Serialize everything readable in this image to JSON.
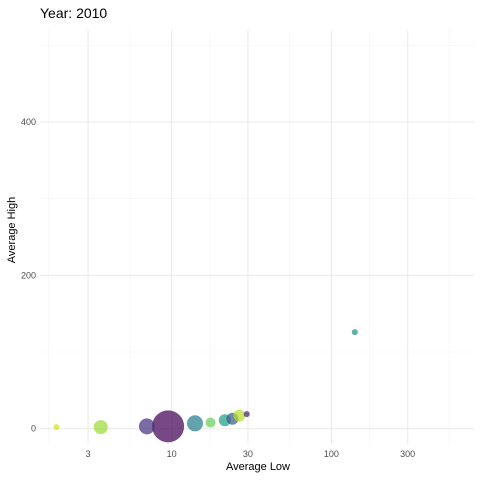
{
  "chart_data": {
    "type": "scatter",
    "title": "Year: 2010",
    "xlabel": "Average Low",
    "ylabel": "Average High",
    "x_scale": "log",
    "xlim": [
      1.5,
      780
    ],
    "ylim": [
      -20,
      520
    ],
    "x_ticks": [
      {
        "value": 3,
        "label": "3"
      },
      {
        "value": 10,
        "label": "10"
      },
      {
        "value": 30,
        "label": "30"
      },
      {
        "value": 100,
        "label": "100"
      },
      {
        "value": 300,
        "label": "300"
      }
    ],
    "y_ticks": [
      {
        "value": 0,
        "label": "0"
      },
      {
        "value": 200,
        "label": "200"
      },
      {
        "value": 400,
        "label": "400"
      }
    ],
    "grid": true,
    "legend": "none",
    "points": [
      {
        "x": 1.9,
        "y": 2,
        "size": 3,
        "color": "#d8e219"
      },
      {
        "x": 3.6,
        "y": 2,
        "size": 7,
        "color": "#a0da39"
      },
      {
        "x": 7.0,
        "y": 3,
        "size": 8,
        "color": "#46327e"
      },
      {
        "x": 9.5,
        "y": 3,
        "size": 16,
        "color": "#440154"
      },
      {
        "x": 14.0,
        "y": 7,
        "size": 8,
        "color": "#277f8e"
      },
      {
        "x": 17.5,
        "y": 8,
        "size": 5,
        "color": "#6ccd5a"
      },
      {
        "x": 21.5,
        "y": 11,
        "size": 6,
        "color": "#1fa187"
      },
      {
        "x": 24.0,
        "y": 13,
        "size": 6,
        "color": "#365c8d"
      },
      {
        "x": 26.5,
        "y": 17,
        "size": 6,
        "color": "#b5de2b"
      },
      {
        "x": 29.5,
        "y": 19,
        "size": 3,
        "color": "#482173"
      },
      {
        "x": 140.0,
        "y": 126,
        "size": 3,
        "color": "#21918c"
      }
    ]
  }
}
